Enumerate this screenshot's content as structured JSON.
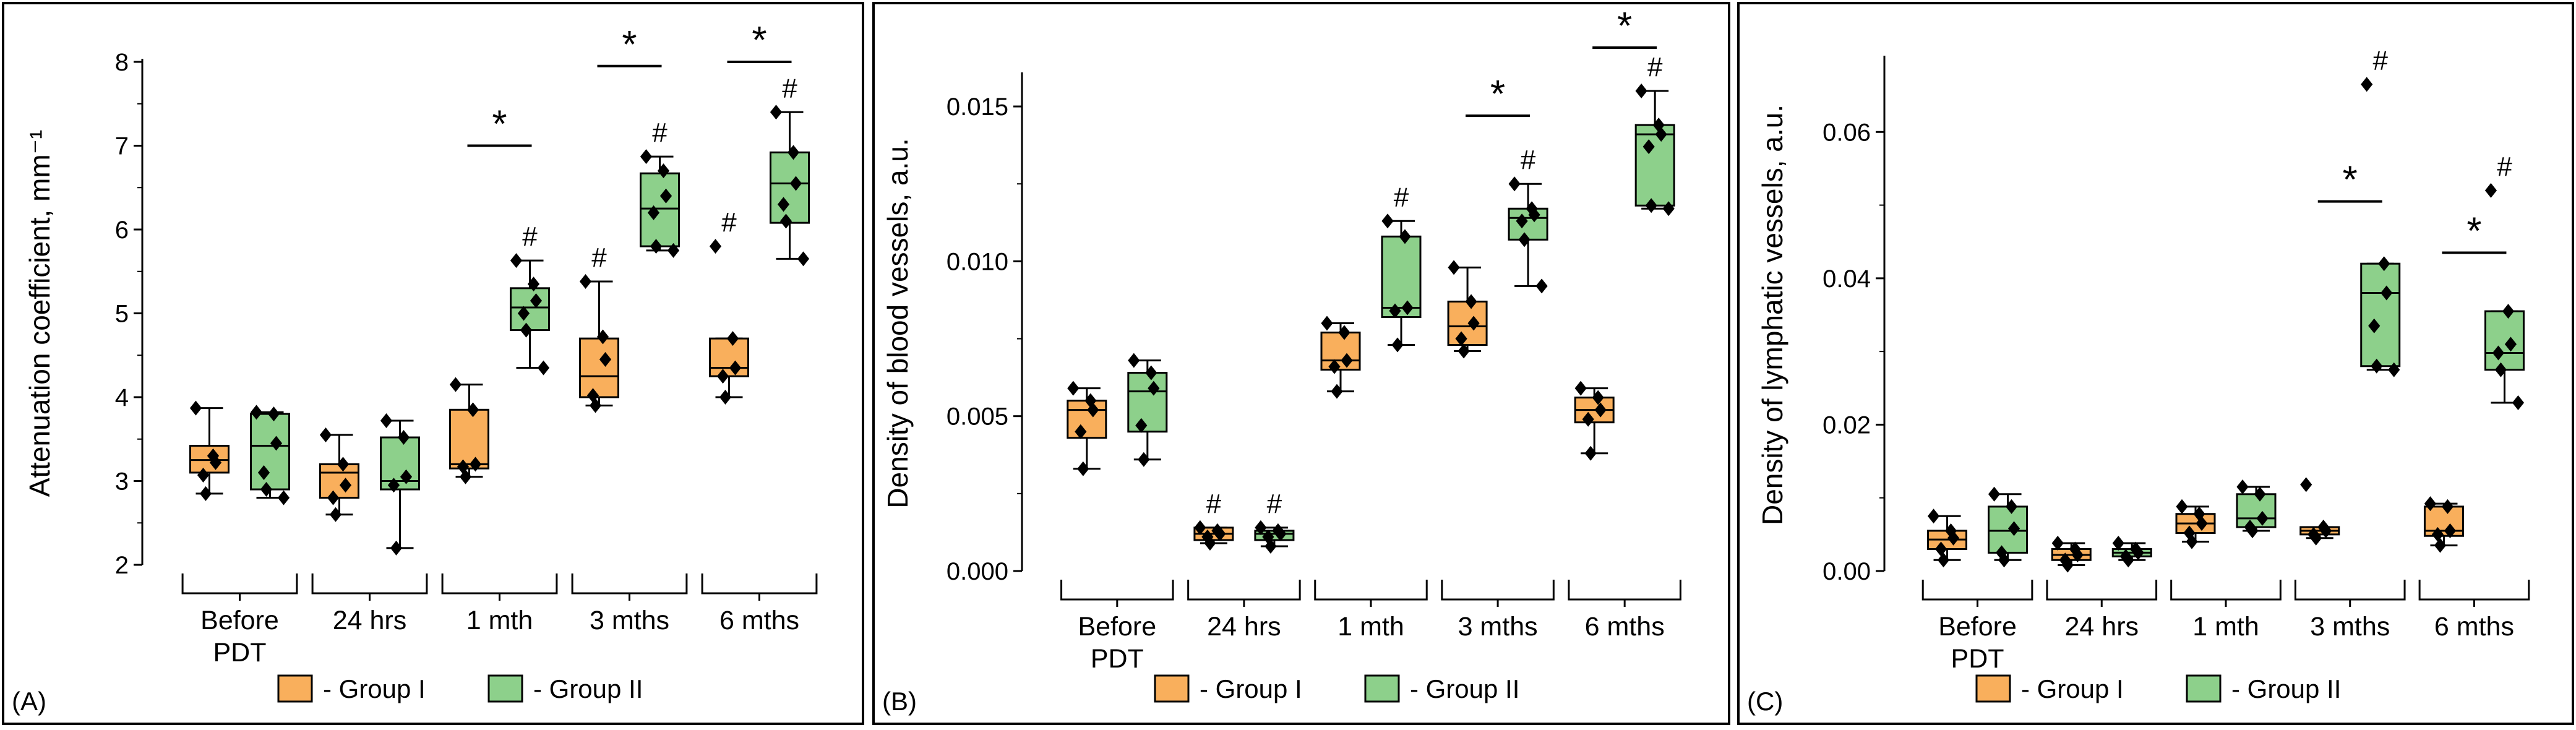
{
  "legend": {
    "group1": {
      "label": "- Group I",
      "color": "#F9AF5C"
    },
    "group2": {
      "label": "- Group II",
      "color": "#8DD08B"
    }
  },
  "markers": {
    "significant": "*",
    "vs_baseline": "#"
  },
  "chart_data": [
    {
      "type": "box",
      "panel": "(A)",
      "ylabel": "Attenuation coefficient, mm⁻¹",
      "ylim": [
        2,
        8
      ],
      "yticks": [
        "2",
        "3",
        "4",
        "5",
        "6",
        "7",
        "8"
      ],
      "categories": [
        "Before\nPDT",
        "24 hrs",
        "1 mth",
        "3 mths",
        "6 mths"
      ],
      "series": [
        {
          "name": "Group I",
          "boxes": [
            {
              "min": 2.85,
              "q1": 3.1,
              "median": 3.25,
              "q3": 3.42,
              "max": 3.87,
              "points": [
                3.87,
                3.3,
                3.22,
                3.07,
                2.85
              ],
              "hash": false
            },
            {
              "min": 2.6,
              "q1": 2.8,
              "median": 3.1,
              "q3": 3.2,
              "max": 3.55,
              "points": [
                3.55,
                3.2,
                2.95,
                2.8,
                2.6
              ],
              "hash": false
            },
            {
              "min": 3.05,
              "q1": 3.15,
              "median": 3.2,
              "q3": 3.85,
              "max": 4.15,
              "points": [
                4.15,
                3.85,
                3.2,
                3.17,
                3.05
              ],
              "hash": false
            },
            {
              "min": 3.9,
              "q1": 4.0,
              "median": 4.25,
              "q3": 4.7,
              "max": 5.38,
              "points": [
                5.38,
                4.72,
                4.45,
                4.02,
                3.9
              ],
              "hash": true
            },
            {
              "min": 4.0,
              "q1": 4.25,
              "median": 4.35,
              "q3": 4.7,
              "max": 4.7,
              "points": [
                5.8,
                4.7,
                4.35,
                4.25,
                4.0
              ],
              "hash": true
            }
          ]
        },
        {
          "name": "Group II",
          "boxes": [
            {
              "min": 2.8,
              "q1": 2.9,
              "median": 3.42,
              "q3": 3.8,
              "max": 3.82,
              "points": [
                3.82,
                3.8,
                3.45,
                3.1,
                2.9,
                2.8
              ],
              "hash": false
            },
            {
              "min": 2.2,
              "q1": 2.9,
              "median": 3.0,
              "q3": 3.52,
              "max": 3.72,
              "points": [
                3.72,
                3.52,
                3.05,
                2.95,
                2.2
              ],
              "hash": false
            },
            {
              "min": 4.35,
              "q1": 4.8,
              "median": 5.07,
              "q3": 5.3,
              "max": 5.63,
              "points": [
                5.63,
                5.35,
                5.15,
                5.0,
                4.8,
                4.35
              ],
              "hash": true
            },
            {
              "min": 5.75,
              "q1": 5.8,
              "median": 6.25,
              "q3": 6.67,
              "max": 6.87,
              "points": [
                6.87,
                6.7,
                6.4,
                6.2,
                5.8,
                5.75
              ],
              "hash": true
            },
            {
              "min": 5.65,
              "q1": 6.08,
              "median": 6.55,
              "q3": 6.92,
              "max": 7.4,
              "points": [
                7.4,
                6.92,
                6.55,
                6.3,
                6.1,
                5.65
              ],
              "hash": true
            }
          ]
        }
      ],
      "significance": [
        {
          "category": 2,
          "y": 7.0
        },
        {
          "category": 3,
          "y": 7.95
        },
        {
          "category": 4,
          "y": 8.0
        }
      ]
    },
    {
      "type": "box",
      "panel": "(B)",
      "ylabel": "Density of blood vessels, a.u.",
      "ylim": [
        0,
        0.016
      ],
      "yticks": [
        "0.000",
        "0.005",
        "0.010",
        "0.015"
      ],
      "categories": [
        "Before\nPDT",
        "24 hrs",
        "1 mth",
        "3 mths",
        "6 mths"
      ],
      "series": [
        {
          "name": "Group I",
          "boxes": [
            {
              "min": 0.0033,
              "q1": 0.0043,
              "median": 0.0052,
              "q3": 0.0055,
              "max": 0.0059,
              "points": [
                0.0059,
                0.0055,
                0.0052,
                0.0045,
                0.0033
              ],
              "hash": false
            },
            {
              "min": 0.0009,
              "q1": 0.001,
              "median": 0.0012,
              "q3": 0.0014,
              "max": 0.0014,
              "points": [
                0.0014,
                0.0013,
                0.0012,
                0.0011,
                0.0009
              ],
              "hash": true
            },
            {
              "min": 0.0058,
              "q1": 0.0065,
              "median": 0.0068,
              "q3": 0.0077,
              "max": 0.008,
              "points": [
                0.008,
                0.0077,
                0.0068,
                0.0066,
                0.0058
              ],
              "hash": false
            },
            {
              "min": 0.0071,
              "q1": 0.0073,
              "median": 0.0079,
              "q3": 0.0087,
              "max": 0.0098,
              "points": [
                0.0098,
                0.0087,
                0.008,
                0.0075,
                0.0071
              ],
              "hash": false
            },
            {
              "min": 0.0038,
              "q1": 0.0048,
              "median": 0.0052,
              "q3": 0.0056,
              "max": 0.0059,
              "points": [
                0.0059,
                0.0056,
                0.0052,
                0.0049,
                0.0038
              ],
              "hash": false
            }
          ]
        },
        {
          "name": "Group II",
          "boxes": [
            {
              "min": 0.0036,
              "q1": 0.0045,
              "median": 0.0058,
              "q3": 0.0064,
              "max": 0.0068,
              "points": [
                0.0068,
                0.0064,
                0.0059,
                0.0047,
                0.0036
              ],
              "hash": false
            },
            {
              "min": 0.0008,
              "q1": 0.001,
              "median": 0.0012,
              "q3": 0.0013,
              "max": 0.0014,
              "points": [
                0.0014,
                0.0013,
                0.0012,
                0.0011,
                0.0008
              ],
              "hash": true
            },
            {
              "min": 0.0073,
              "q1": 0.0082,
              "median": 0.0085,
              "q3": 0.0108,
              "max": 0.0113,
              "points": [
                0.0113,
                0.0108,
                0.0085,
                0.0084,
                0.0073
              ],
              "hash": true
            },
            {
              "min": 0.0092,
              "q1": 0.0107,
              "median": 0.0114,
              "q3": 0.0117,
              "max": 0.0125,
              "points": [
                0.0125,
                0.0117,
                0.0115,
                0.0113,
                0.0107,
                0.0092
              ],
              "hash": true
            },
            {
              "min": 0.0117,
              "q1": 0.0118,
              "median": 0.0141,
              "q3": 0.0144,
              "max": 0.0155,
              "points": [
                0.0155,
                0.0144,
                0.0141,
                0.0137,
                0.0118,
                0.0117
              ],
              "hash": true
            }
          ]
        }
      ],
      "significance": [
        {
          "category": 3,
          "y": 0.0147
        },
        {
          "category": 4,
          "y": 0.0169
        }
      ]
    },
    {
      "type": "box",
      "panel": "(C)",
      "ylabel": "Density of lymphatic vessels, a.u.",
      "ylim": [
        0,
        0.07
      ],
      "yticks": [
        "0.00",
        "0.02",
        "0.04",
        "0.06"
      ],
      "categories": [
        "Before\nPDT",
        "24 hrs",
        "1 mth",
        "3 mths",
        "6 mths"
      ],
      "series": [
        {
          "name": "Group I",
          "boxes": [
            {
              "min": 0.0015,
              "q1": 0.003,
              "median": 0.0043,
              "q3": 0.0055,
              "max": 0.0075,
              "points": [
                0.0075,
                0.0055,
                0.0045,
                0.003,
                0.0015
              ],
              "hash": false
            },
            {
              "min": 0.0008,
              "q1": 0.0015,
              "median": 0.0022,
              "q3": 0.003,
              "max": 0.0038,
              "points": [
                0.0038,
                0.003,
                0.0022,
                0.0015,
                0.0008
              ],
              "hash": false
            },
            {
              "min": 0.004,
              "q1": 0.0052,
              "median": 0.0065,
              "q3": 0.0078,
              "max": 0.0088,
              "points": [
                0.0088,
                0.0078,
                0.0065,
                0.0052,
                0.004
              ],
              "hash": false
            },
            {
              "min": 0.0045,
              "q1": 0.005,
              "median": 0.0055,
              "q3": 0.006,
              "max": 0.006,
              "points": [
                0.0118,
                0.006,
                0.0055,
                0.005,
                0.0045
              ],
              "hash": false
            },
            {
              "min": 0.0035,
              "q1": 0.0048,
              "median": 0.0055,
              "q3": 0.0088,
              "max": 0.0092,
              "points": [
                0.0092,
                0.0088,
                0.0055,
                0.005,
                0.0035
              ],
              "hash": false
            }
          ]
        },
        {
          "name": "Group II",
          "boxes": [
            {
              "min": 0.0015,
              "q1": 0.0025,
              "median": 0.0055,
              "q3": 0.0088,
              "max": 0.0105,
              "points": [
                0.0105,
                0.0088,
                0.0058,
                0.0025,
                0.0015
              ],
              "hash": false
            },
            {
              "min": 0.0015,
              "q1": 0.002,
              "median": 0.0025,
              "q3": 0.003,
              "max": 0.0038,
              "points": [
                0.0038,
                0.003,
                0.0025,
                0.002,
                0.0015
              ],
              "hash": false
            },
            {
              "min": 0.0055,
              "q1": 0.006,
              "median": 0.0072,
              "q3": 0.0105,
              "max": 0.0115,
              "points": [
                0.0115,
                0.0105,
                0.0072,
                0.006,
                0.0055
              ],
              "hash": false
            },
            {
              "min": 0.0275,
              "q1": 0.028,
              "median": 0.038,
              "q3": 0.042,
              "max": 0.042,
              "points": [
                0.0665,
                0.042,
                0.038,
                0.0335,
                0.028,
                0.0275
              ],
              "hash": true
            },
            {
              "min": 0.023,
              "q1": 0.0275,
              "median": 0.0298,
              "q3": 0.0355,
              "max": 0.0355,
              "points": [
                0.052,
                0.0355,
                0.031,
                0.0298,
                0.0275,
                0.023
              ],
              "hash": true
            }
          ]
        }
      ],
      "significance": [
        {
          "category": 3,
          "y": 0.0505
        },
        {
          "category": 4,
          "y": 0.0435
        }
      ]
    }
  ]
}
